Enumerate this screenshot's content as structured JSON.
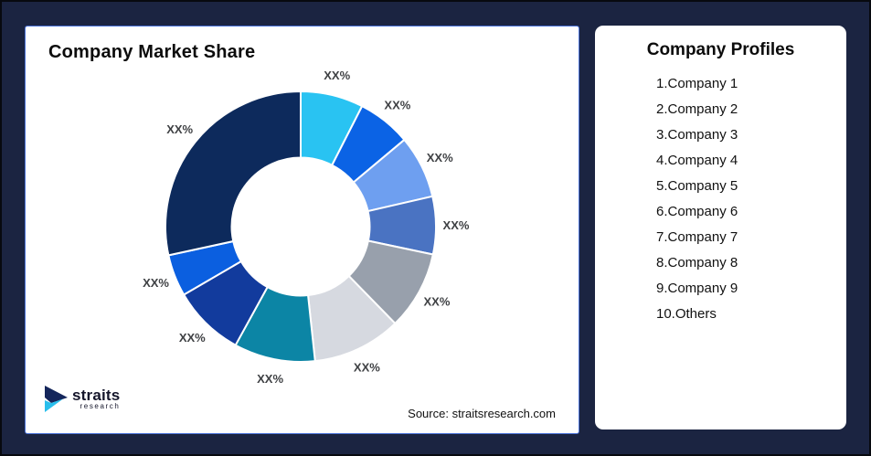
{
  "window": {
    "background": "#1B2441",
    "frame_border": "#07090F"
  },
  "left_card": {
    "title": "Company Market Share",
    "border_color": "#4A72D8",
    "source_note": "Source: straitsresearch.com",
    "logo": {
      "text_primary": "straits",
      "text_secondary": "research",
      "mark_navy": "#15265B",
      "mark_cyan": "#29BEEC"
    }
  },
  "right_card": {
    "title": "Company Profiles",
    "items": [
      "1.Company 1",
      "2.Company 2",
      "3.Company 3",
      "4.Company 4",
      "5.Company 5",
      "6.Company 6",
      "7.Company 7",
      "8.Company 8",
      "9.Company 9",
      "10.Others"
    ]
  },
  "chart_data": {
    "type": "pie",
    "subtype": "donut",
    "title": "Company Market Share",
    "values_masked_as": "XX%",
    "start_angle_deg": 0,
    "clockwise": true,
    "inner_radius_ratio": 0.51,
    "gap_color": "#FFFFFF",
    "label_color": "#3F4144",
    "legend": "none",
    "segments": [
      {
        "name": "Company 1",
        "label": "XX%",
        "value_pct": 7.5,
        "color": "#29C3F2"
      },
      {
        "name": "Company 2",
        "label": "XX%",
        "value_pct": 6.4,
        "color": "#0B63E5"
      },
      {
        "name": "Company 3",
        "label": "XX%",
        "value_pct": 7.5,
        "color": "#6E9FF0"
      },
      {
        "name": "Company 4",
        "label": "XX%",
        "value_pct": 6.9,
        "color": "#4A73C2"
      },
      {
        "name": "Company 5",
        "label": "XX%",
        "value_pct": 9.4,
        "color": "#98A0AC"
      },
      {
        "name": "Company 6",
        "label": "XX%",
        "value_pct": 10.6,
        "color": "#D6D9E0"
      },
      {
        "name": "Company 7",
        "label": "XX%",
        "value_pct": 9.7,
        "color": "#0C85A5"
      },
      {
        "name": "Company 8",
        "label": "XX%",
        "value_pct": 8.6,
        "color": "#123B9D"
      },
      {
        "name": "Company 9",
        "label": "XX%",
        "value_pct": 5.0,
        "color": "#0B5FE0"
      },
      {
        "name": "Others",
        "label": "XX%",
        "value_pct": 28.4,
        "color": "#0D2A5C"
      }
    ]
  }
}
